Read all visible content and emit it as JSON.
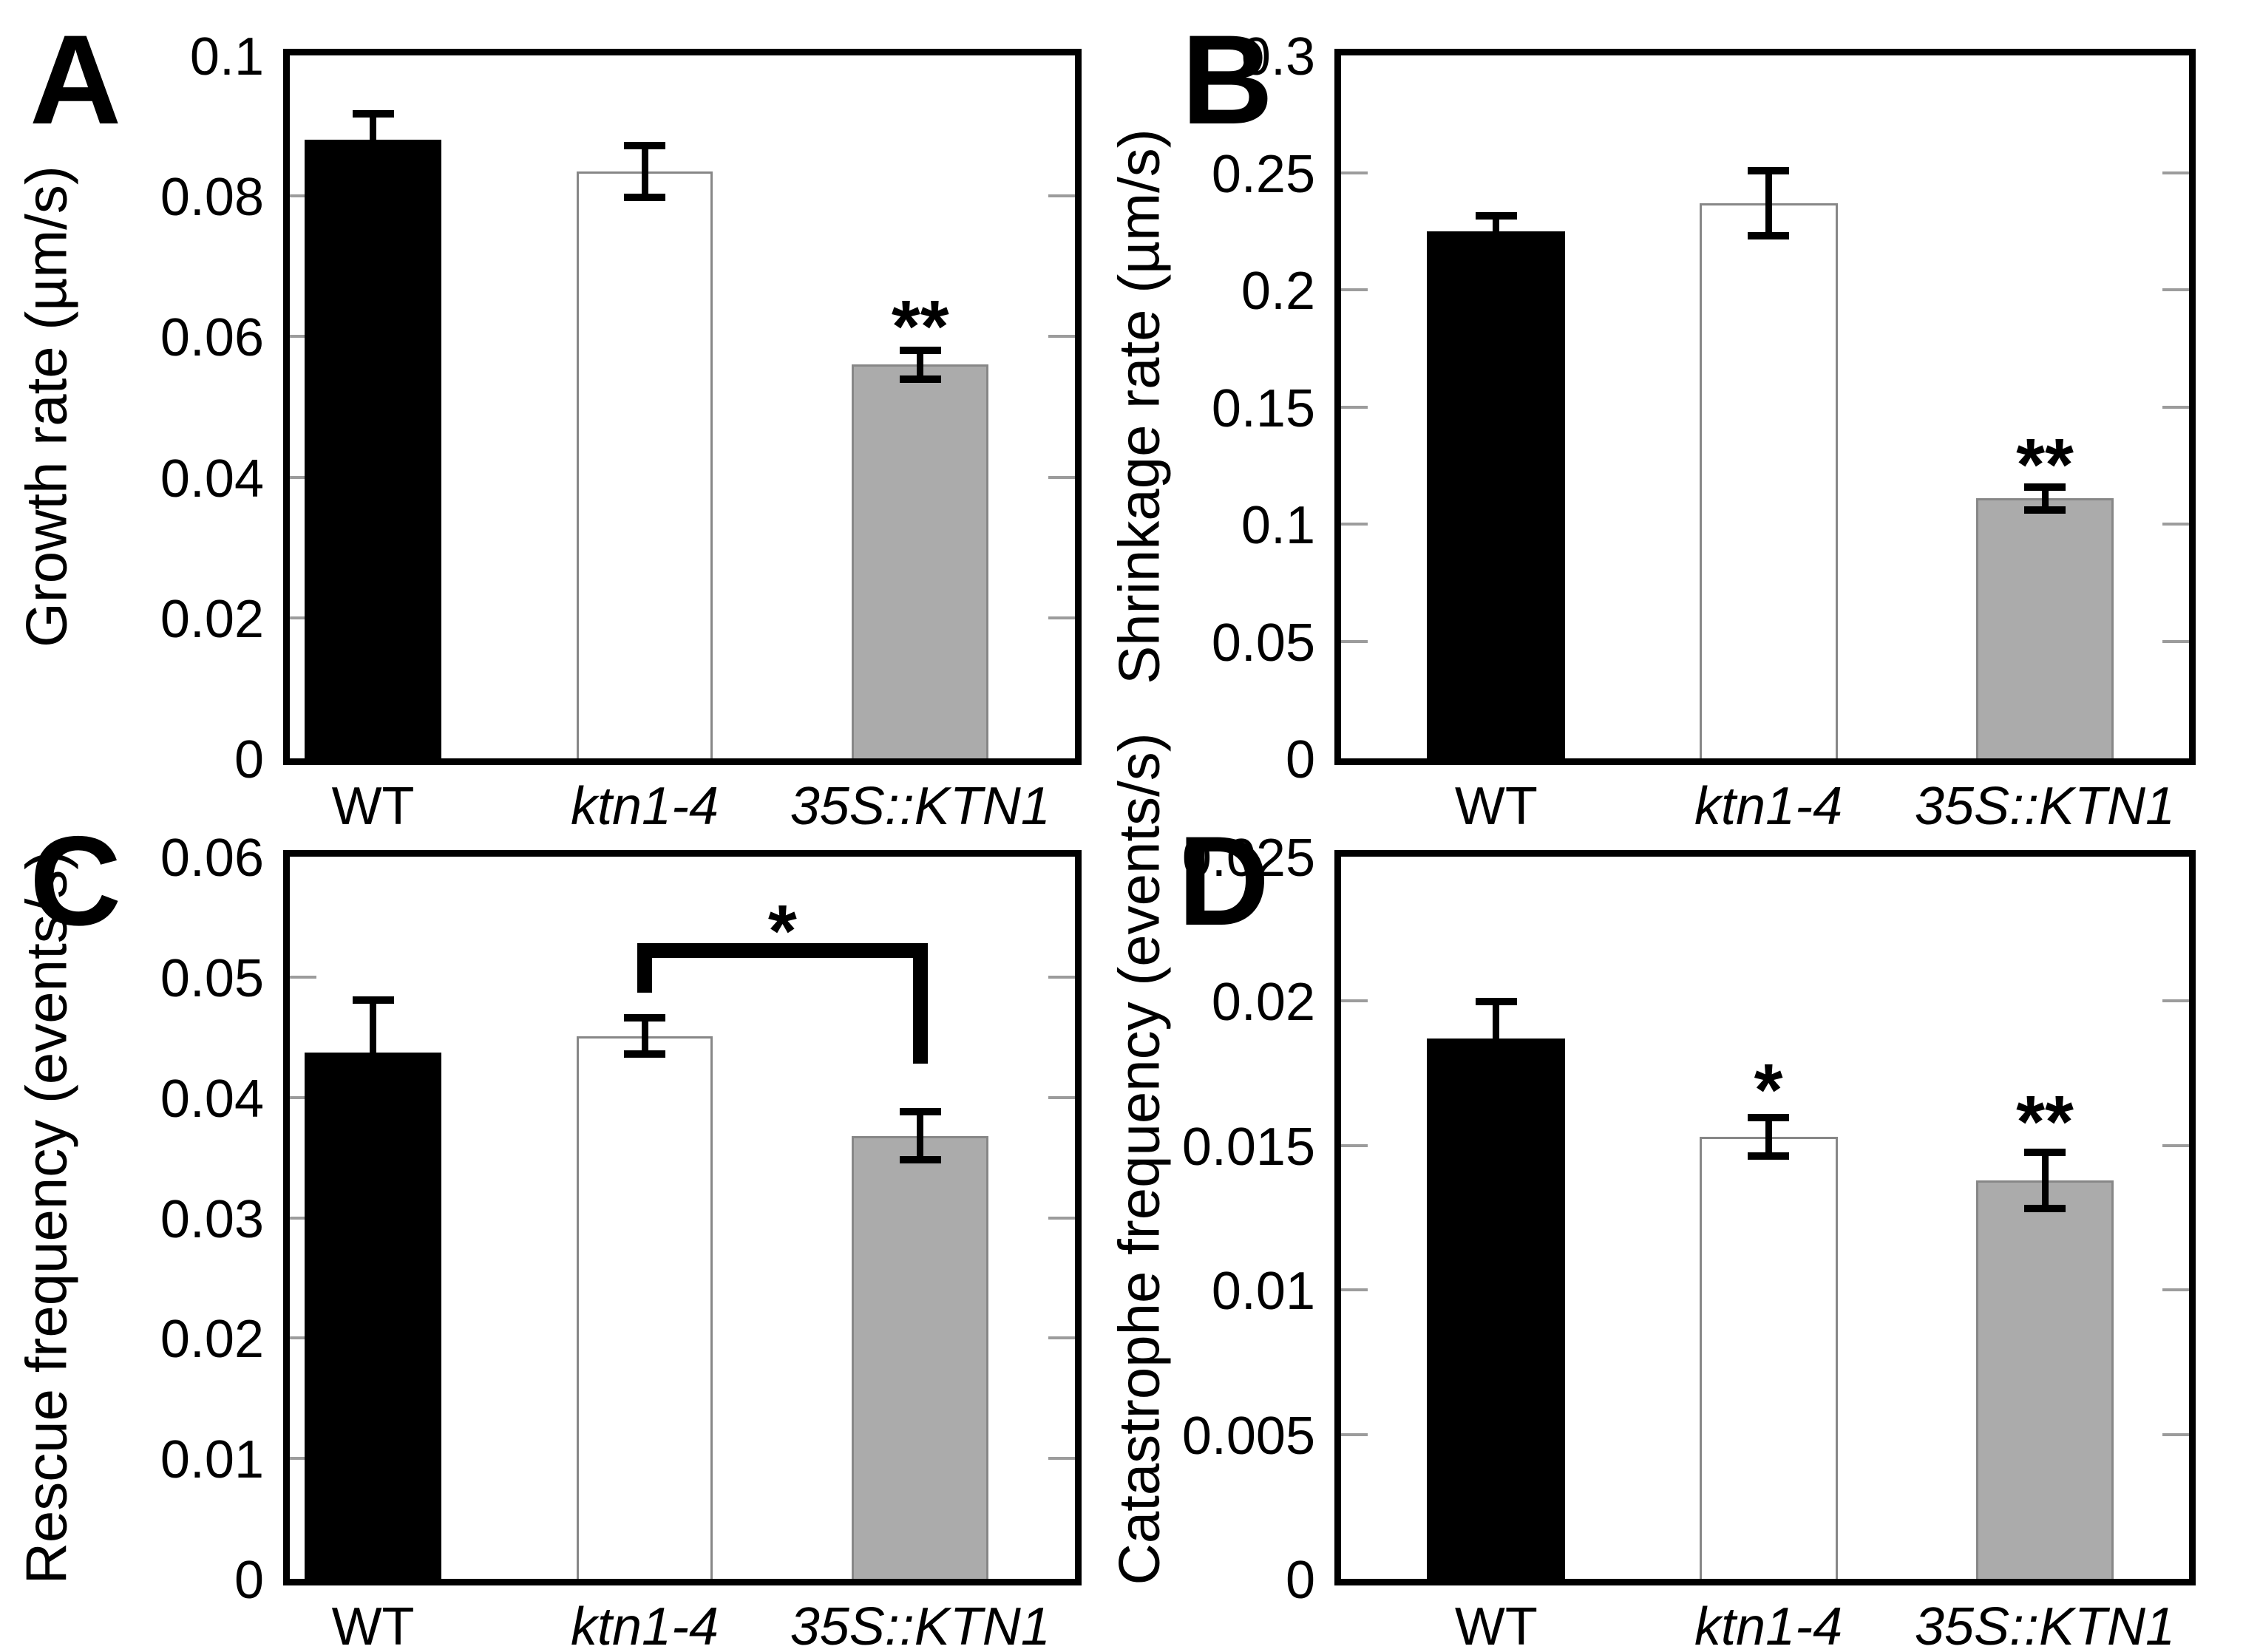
{
  "figure": {
    "background": "#ffffff",
    "bar_fill_colors": [
      "#000000",
      "#ffffff",
      "#ababab"
    ],
    "bar_border_color": "#878787",
    "frame_color": "#000000",
    "tick_color": "#9c9c9c",
    "error_bar_color": "#000000"
  },
  "chart_data": [
    {
      "panel_label": "A",
      "type": "bar",
      "ylabel": "Growth rate (µm/s)",
      "xlabel": "",
      "categories": [
        {
          "label": "WT",
          "italic": false
        },
        {
          "label": "ktn1-4",
          "italic": true
        },
        {
          "label": "35S::KTN1",
          "italic": true
        }
      ],
      "values": [
        0.088,
        0.0835,
        0.056
      ],
      "errors": [
        0.0042,
        0.0042,
        0.0026
      ],
      "ylim": [
        0,
        0.1
      ],
      "grid": false,
      "yticks": [
        {
          "v": 0,
          "label": "0"
        },
        {
          "v": 0.02,
          "label": "0.02"
        },
        {
          "v": 0.04,
          "label": "0.04"
        },
        {
          "v": 0.06,
          "label": "0.06"
        },
        {
          "v": 0.08,
          "label": "0.08"
        },
        {
          "v": 0.1,
          "label": "0.1"
        }
      ],
      "significance": [
        {
          "bar": 2,
          "text": "**",
          "y": 0.0655
        }
      ],
      "bracket": null
    },
    {
      "panel_label": "B",
      "type": "bar",
      "ylabel": "Shrinkage rate (µm/s)",
      "xlabel": "",
      "categories": [
        {
          "label": "WT",
          "italic": false
        },
        {
          "label": "ktn1-4",
          "italic": true
        },
        {
          "label": "35S::KTN1",
          "italic": true
        }
      ],
      "values": [
        0.225,
        0.237,
        0.111
      ],
      "errors": [
        0.008,
        0.0155,
        0.0065
      ],
      "ylim": [
        0,
        0.3
      ],
      "grid": false,
      "yticks": [
        {
          "v": 0,
          "label": "0"
        },
        {
          "v": 0.05,
          "label": "0.05"
        },
        {
          "v": 0.1,
          "label": "0.1"
        },
        {
          "v": 0.15,
          "label": "0.15"
        },
        {
          "v": 0.2,
          "label": "0.2"
        },
        {
          "v": 0.25,
          "label": "0.25"
        },
        {
          "v": 0.3,
          "label": "0.3"
        }
      ],
      "significance": [
        {
          "bar": 2,
          "text": "**",
          "y": 0.1375
        }
      ],
      "bracket": null
    },
    {
      "panel_label": "C",
      "type": "bar",
      "ylabel": "Rescue frequency (events/s)",
      "xlabel": "",
      "categories": [
        {
          "label": "WT",
          "italic": false
        },
        {
          "label": "ktn1-4",
          "italic": true
        },
        {
          "label": "35S::KTN1",
          "italic": true
        }
      ],
      "values": [
        0.0437,
        0.0451,
        0.0368
      ],
      "errors": [
        0.0047,
        0.0018,
        0.0023
      ],
      "ylim": [
        0,
        0.06
      ],
      "grid": false,
      "yticks": [
        {
          "v": 0,
          "label": "0"
        },
        {
          "v": 0.01,
          "label": "0.01"
        },
        {
          "v": 0.02,
          "label": "0.02"
        },
        {
          "v": 0.03,
          "label": "0.03"
        },
        {
          "v": 0.04,
          "label": "0.04"
        },
        {
          "v": 0.05,
          "label": "0.05"
        },
        {
          "v": 0.06,
          "label": "0.06"
        }
      ],
      "significance": [],
      "bracket": {
        "from": 1,
        "to": 2,
        "text": "*",
        "bar_y": 0.0528,
        "left_drop_to": 0.0487,
        "right_drop_to": 0.0428,
        "text_y": 0.0562
      }
    },
    {
      "panel_label": "D",
      "type": "bar",
      "ylabel": "Catastrophe frequency (events/s)",
      "xlabel": "",
      "categories": [
        {
          "label": "WT",
          "italic": false
        },
        {
          "label": "ktn1-4",
          "italic": true
        },
        {
          "label": "35S::KTN1",
          "italic": true
        }
      ],
      "values": [
        0.0187,
        0.0153,
        0.0138
      ],
      "errors": [
        0.0014,
        0.0008,
        0.0011
      ],
      "ylim": [
        0,
        0.025
      ],
      "grid": false,
      "yticks": [
        {
          "v": 0,
          "label": "0"
        },
        {
          "v": 0.005,
          "label": "0.005"
        },
        {
          "v": 0.01,
          "label": "0.01"
        },
        {
          "v": 0.015,
          "label": "0.015"
        },
        {
          "v": 0.02,
          "label": "0.02"
        },
        {
          "v": 0.025,
          "label": "0.025"
        }
      ],
      "significance": [
        {
          "bar": 1,
          "text": "*",
          "y": 0.0179
        },
        {
          "bar": 2,
          "text": "**",
          "y": 0.0168
        }
      ],
      "bracket": null
    }
  ]
}
